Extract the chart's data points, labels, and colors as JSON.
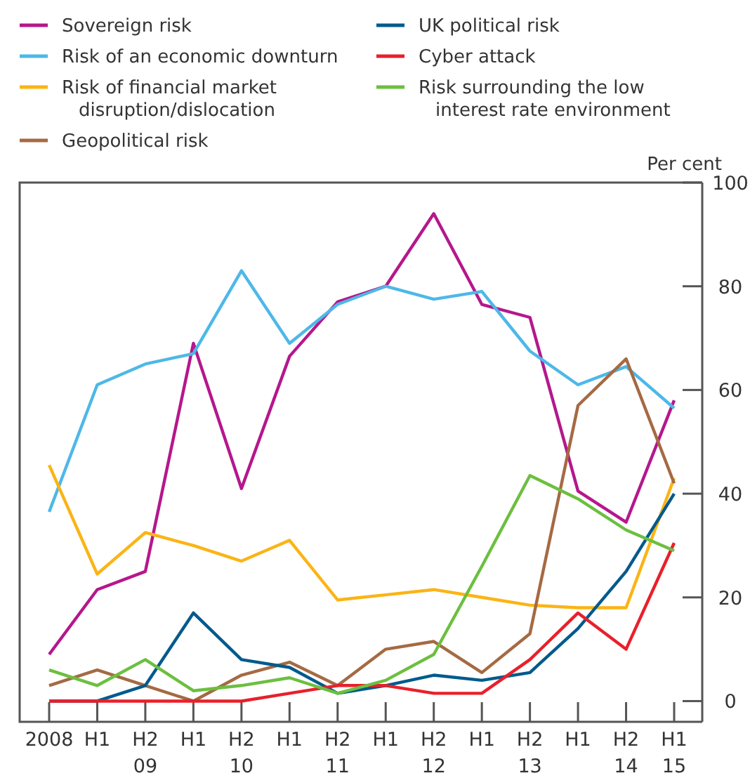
{
  "chart_data": {
    "type": "line",
    "ylabel": "Per cent",
    "categories": [
      "2008",
      "H1",
      "H2\n09",
      "H1",
      "H2\n10",
      "H1",
      "H2\n11",
      "H1",
      "H2\n12",
      "H1",
      "H2\n13",
      "H1",
      "H2\n14",
      "H1\n15"
    ],
    "ylim": [
      -4,
      100
    ],
    "yticks": [
      0,
      20,
      40,
      60,
      80,
      100
    ],
    "legend": "top",
    "grid": false,
    "marker": "none",
    "line_style": "solid",
    "series": [
      {
        "name": "Sovereign risk",
        "color": "#b5178c",
        "values": [
          9,
          21.5,
          25,
          69,
          41,
          66.5,
          77,
          80,
          94,
          76.5,
          74,
          40.5,
          34.5,
          58
        ]
      },
      {
        "name": "Risk of an economic downturn",
        "color": "#4db8e8",
        "values": [
          36.5,
          61,
          65,
          67,
          83,
          69,
          76.5,
          80,
          77.5,
          79,
          67.5,
          61,
          64.5,
          56.5
        ]
      },
      {
        "name": "Risk of financial market\ndisruption/dislocation",
        "color": "#fbb415",
        "values": [
          45.5,
          24.5,
          32.5,
          30,
          27,
          31,
          19.5,
          20.5,
          21.5,
          20,
          18.5,
          18,
          18,
          43
        ]
      },
      {
        "name": "Geopolitical risk",
        "color": "#a56a43",
        "values": [
          3,
          6,
          3,
          0,
          5,
          7.5,
          3,
          10,
          11.5,
          5.5,
          13,
          57,
          66,
          42
        ]
      },
      {
        "name": "UK political risk",
        "color": "#005a8c",
        "values": [
          0,
          0,
          3,
          17,
          8,
          6.5,
          1.5,
          3,
          5,
          4,
          5.5,
          14,
          25,
          40
        ]
      },
      {
        "name": "Cyber attack",
        "color": "#e8202a",
        "values": [
          0,
          0,
          0,
          0,
          0,
          1.5,
          3,
          3,
          1.5,
          1.5,
          8,
          17,
          10,
          30.5
        ]
      },
      {
        "name": "Risk surrounding the low\ninterest rate environment",
        "color": "#6cbf3f",
        "values": [
          6,
          3,
          8,
          2,
          3,
          4.5,
          1.5,
          4,
          9,
          26,
          43.5,
          39,
          33,
          29
        ]
      }
    ]
  }
}
